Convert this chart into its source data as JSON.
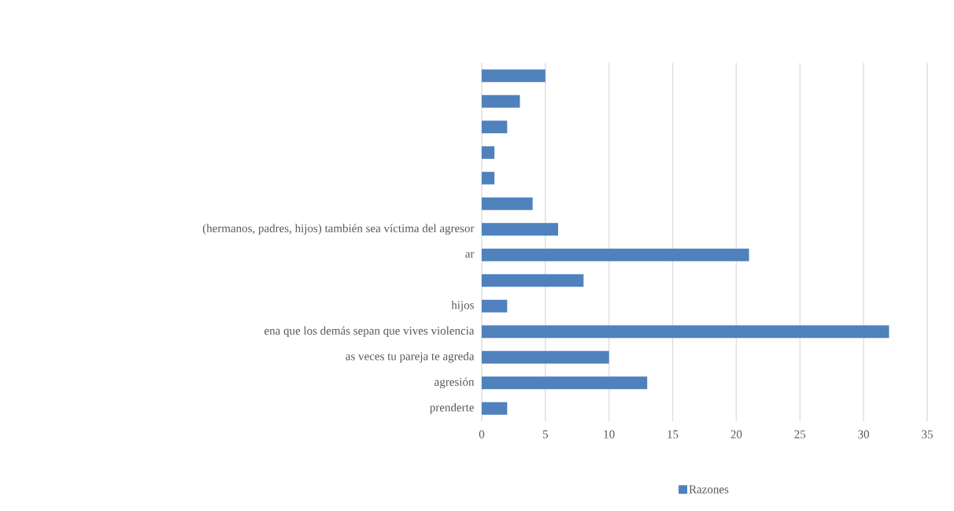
{
  "chart_data": {
    "type": "bar",
    "orientation": "horizontal",
    "categories": [
      null,
      null,
      null,
      null,
      null,
      null,
      "(hermanos, padres, hijos) también sea víctima del agresor",
      "ar",
      null,
      "hijos",
      "ena que los demás sepan que vives violencia",
      "as veces tu pareja te agreda",
      "agresión",
      "prenderte"
    ],
    "series": [
      {
        "name": "Razones",
        "color": "#4f81bd",
        "values": [
          5,
          3,
          2,
          1,
          1,
          4,
          6,
          21,
          8,
          2,
          32,
          10,
          13,
          2
        ]
      }
    ],
    "xlim": [
      0,
      35
    ],
    "xticks": [
      0,
      5,
      10,
      15,
      20,
      25,
      30,
      35
    ],
    "grid": "x",
    "legend": "bottom"
  }
}
